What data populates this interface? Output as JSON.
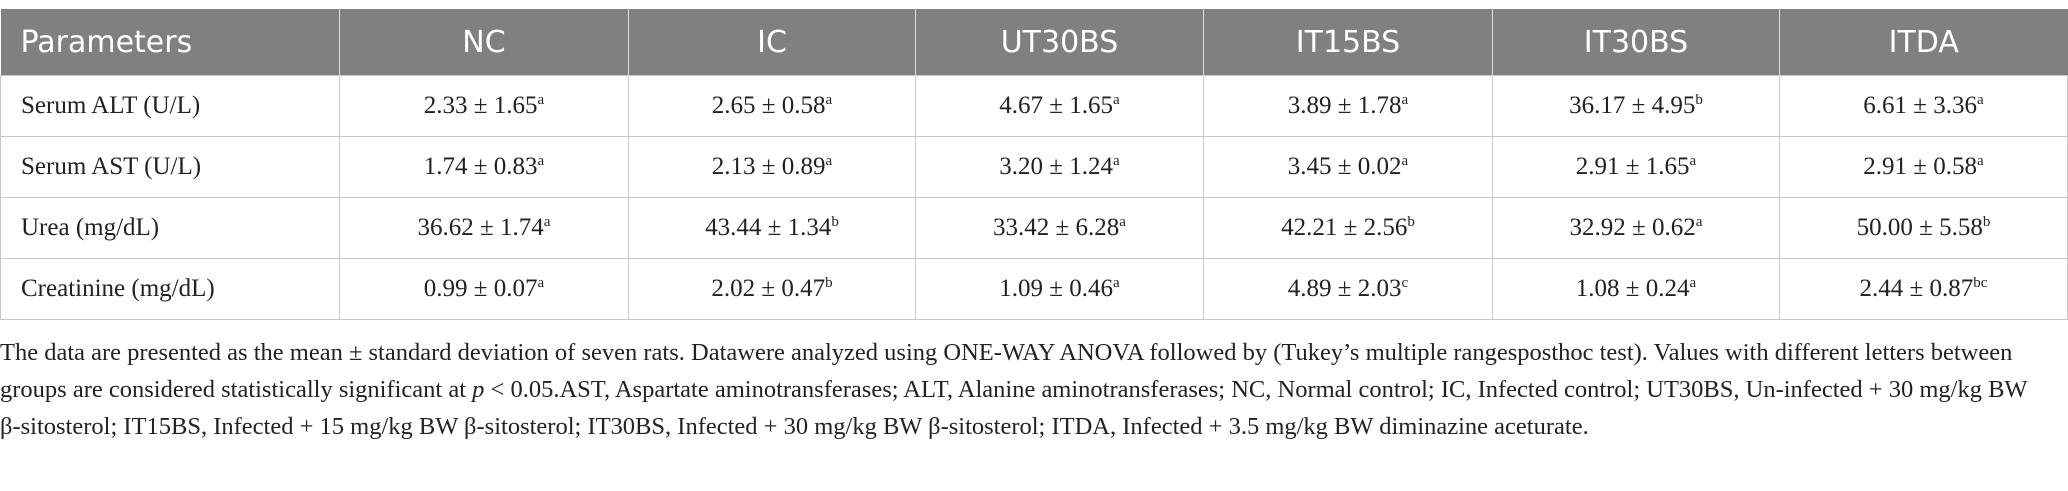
{
  "table": {
    "header": [
      "Parameters",
      "NC",
      "IC",
      "UT30BS",
      "IT15BS",
      "IT30BS",
      "ITDA"
    ],
    "rows": [
      [
        "Serum ALT (U/L)",
        {
          "value": "2.33 ± 1.65",
          "sup": "a"
        },
        {
          "value": "2.65 ± 0.58",
          "sup": "a"
        },
        {
          "value": "4.67 ± 1.65",
          "sup": "a"
        },
        {
          "value": "3.89 ± 1.78",
          "sup": "a"
        },
        {
          "value": "36.17 ± 4.95",
          "sup": "b"
        },
        {
          "value": "6.61 ± 3.36",
          "sup": "a"
        }
      ],
      [
        "Serum AST (U/L)",
        {
          "value": "1.74 ± 0.83",
          "sup": "a"
        },
        {
          "value": "2.13 ± 0.89",
          "sup": "a"
        },
        {
          "value": "3.20 ± 1.24",
          "sup": "a"
        },
        {
          "value": "3.45 ± 0.02",
          "sup": "a"
        },
        {
          "value": "2.91 ± 1.65",
          "sup": "a"
        },
        {
          "value": "2.91 ± 0.58",
          "sup": "a"
        }
      ],
      [
        "Urea (mg/dL)",
        {
          "value": "36.62 ± 1.74",
          "sup": "a"
        },
        {
          "value": "43.44 ± 1.34",
          "sup": "b"
        },
        {
          "value": "33.42 ± 6.28",
          "sup": "a"
        },
        {
          "value": "42.21 ± 2.56",
          "sup": "b"
        },
        {
          "value": "32.92 ± 0.62",
          "sup": "a"
        },
        {
          "value": "50.00 ± 5.58",
          "sup": "b"
        }
      ],
      [
        "Creatinine (mg/dL)",
        {
          "value": "0.99 ± 0.07",
          "sup": "a"
        },
        {
          "value": "2.02 ± 0.47",
          "sup": "b"
        },
        {
          "value": "1.09 ± 0.46",
          "sup": "a"
        },
        {
          "value": "4.89 ± 2.03",
          "sup": "c"
        },
        {
          "value": "1.08 ± 0.24",
          "sup": "a"
        },
        {
          "value": "2.44 ± 0.87",
          "sup": "bc"
        }
      ]
    ]
  },
  "footnote": [
    "The data are presented as the mean ± standard deviation of seven rats. Datawere analyzed using ONE-WAY ANOVA followed by (Tukey’s multiple rangesposthoc test). Values with different letters between groups are considered statistically significant at ",
    "p",
    " < 0.05.AST, Aspartate aminotransferases; ALT, Alanine aminotransferases; NC, Normal control; IC, Infected control; UT30BS, Un-infected + 30 mg/kg BW β-sitosterol; IT15BS, Infected + 15 mg/kg BW β-sitosterol; IT30BS, Infected + 30 mg/kg BW β-sitosterol; ITDA, Infected + 3.5 mg/kg BW diminazine aceturate."
  ]
}
